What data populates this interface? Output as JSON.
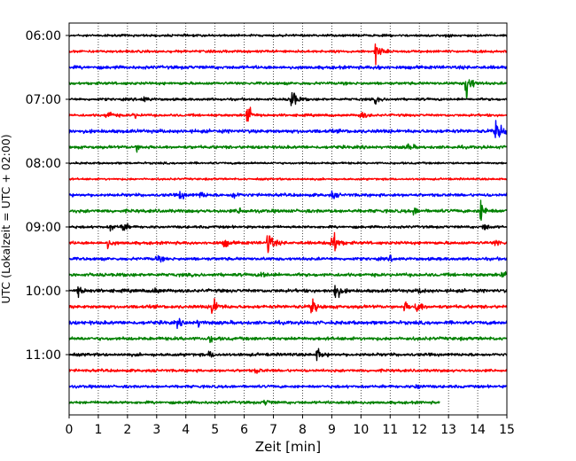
{
  "chart_data": {
    "type": "line",
    "title": "",
    "xlabel": "Zeit  [min]",
    "ylabel": "UTC (Lokalzeit = UTC + 02:00)",
    "xlim": [
      0,
      15
    ],
    "x_ticks": [
      "0",
      "1",
      "2",
      "3",
      "4",
      "5",
      "6",
      "7",
      "8",
      "9",
      "10",
      "11",
      "12",
      "13",
      "14",
      "15"
    ],
    "y_ticks": [
      "06:00",
      "07:00",
      "08:00",
      "09:00",
      "10:00",
      "11:00"
    ],
    "grid": "vertical dotted lines at each minute",
    "legend": "none",
    "colors": [
      "#000000",
      "#ff0000",
      "#0000ff",
      "#008000"
    ],
    "traces": [
      {
        "start": "06:00",
        "color": "#000000",
        "amp": 0.9,
        "end_min": 15,
        "events": [
          {
            "t": 12.9,
            "a": 1.0
          }
        ]
      },
      {
        "start": "06:15",
        "color": "#ff0000",
        "amp": 1.0,
        "end_min": 15,
        "events": [
          {
            "t": 10.5,
            "a": 10
          }
        ]
      },
      {
        "start": "06:30",
        "color": "#0000ff",
        "amp": 1.3,
        "end_min": 15,
        "events": [
          {
            "t": 10.6,
            "a": 1.5
          }
        ]
      },
      {
        "start": "06:45",
        "color": "#008000",
        "amp": 1.1,
        "end_min": 15,
        "events": [
          {
            "t": 13.6,
            "a": 18
          }
        ]
      },
      {
        "start": "07:00",
        "color": "#000000",
        "amp": 1.0,
        "end_min": 15,
        "events": [
          {
            "t": 7.6,
            "a": 13
          },
          {
            "t": 2.5,
            "a": 4
          },
          {
            "t": 10.5,
            "a": 3
          }
        ]
      },
      {
        "start": "07:15",
        "color": "#ff0000",
        "amp": 1.0,
        "end_min": 15,
        "events": [
          {
            "t": 6.1,
            "a": 11
          },
          {
            "t": 1.3,
            "a": 6
          },
          {
            "t": 10.0,
            "a": 4
          },
          {
            "t": 2.2,
            "a": 2.5
          }
        ]
      },
      {
        "start": "07:30",
        "color": "#0000ff",
        "amp": 1.4,
        "end_min": 15,
        "events": [
          {
            "t": 14.6,
            "a": 9
          },
          {
            "t": 14.8,
            "a": 4
          }
        ]
      },
      {
        "start": "07:45",
        "color": "#008000",
        "amp": 1.2,
        "end_min": 15,
        "events": [
          {
            "t": 2.3,
            "a": 3
          },
          {
            "t": 11.6,
            "a": 3
          }
        ]
      },
      {
        "start": "08:00",
        "color": "#000000",
        "amp": 0.8,
        "end_min": 15,
        "events": []
      },
      {
        "start": "08:15",
        "color": "#ff0000",
        "amp": 0.8,
        "end_min": 15,
        "events": []
      },
      {
        "start": "08:30",
        "color": "#0000ff",
        "amp": 1.2,
        "end_min": 15,
        "events": [
          {
            "t": 3.8,
            "a": 4
          },
          {
            "t": 4.5,
            "a": 3
          },
          {
            "t": 5.6,
            "a": 4
          },
          {
            "t": 9.0,
            "a": 3
          }
        ]
      },
      {
        "start": "08:45",
        "color": "#008000",
        "amp": 1.3,
        "end_min": 15,
        "events": [
          {
            "t": 14.1,
            "a": 10
          },
          {
            "t": 5.8,
            "a": 3
          },
          {
            "t": 11.8,
            "a": 3
          }
        ]
      },
      {
        "start": "09:00",
        "color": "#000000",
        "amp": 1.0,
        "end_min": 15,
        "events": [
          {
            "t": 1.8,
            "a": 6
          },
          {
            "t": 14.2,
            "a": 4
          },
          {
            "t": 1.4,
            "a": 3
          }
        ]
      },
      {
        "start": "09:15",
        "color": "#ff0000",
        "amp": 1.2,
        "end_min": 15,
        "events": [
          {
            "t": 9.0,
            "a": 18
          },
          {
            "t": 6.8,
            "a": 14
          },
          {
            "t": 1.3,
            "a": 4
          },
          {
            "t": 5.3,
            "a": 4
          },
          {
            "t": 14.6,
            "a": 3
          }
        ]
      },
      {
        "start": "09:30",
        "color": "#0000ff",
        "amp": 1.2,
        "end_min": 15,
        "events": [
          {
            "t": 3.0,
            "a": 3
          },
          {
            "t": 11.0,
            "a": 2
          }
        ]
      },
      {
        "start": "09:45",
        "color": "#008000",
        "amp": 1.3,
        "end_min": 15,
        "events": [
          {
            "t": 6.6,
            "a": 3
          },
          {
            "t": 14.8,
            "a": 3
          }
        ]
      },
      {
        "start": "10:00",
        "color": "#000000",
        "amp": 1.3,
        "end_min": 15,
        "events": [
          {
            "t": 9.1,
            "a": 10
          },
          {
            "t": 0.3,
            "a": 5
          },
          {
            "t": 2.9,
            "a": 3
          },
          {
            "t": 12.0,
            "a": 2
          }
        ]
      },
      {
        "start": "10:15",
        "color": "#ff0000",
        "amp": 1.3,
        "end_min": 15,
        "events": [
          {
            "t": 4.9,
            "a": 12
          },
          {
            "t": 8.3,
            "a": 8
          },
          {
            "t": 11.9,
            "a": 7
          },
          {
            "t": 11.5,
            "a": 4
          }
        ]
      },
      {
        "start": "10:30",
        "color": "#0000ff",
        "amp": 1.4,
        "end_min": 15,
        "events": [
          {
            "t": 3.7,
            "a": 3
          },
          {
            "t": 4.4,
            "a": 3
          }
        ]
      },
      {
        "start": "10:45",
        "color": "#008000",
        "amp": 1.3,
        "end_min": 15,
        "events": [
          {
            "t": 4.8,
            "a": 3
          }
        ]
      },
      {
        "start": "11:00",
        "color": "#000000",
        "amp": 1.2,
        "end_min": 15,
        "events": [
          {
            "t": 8.5,
            "a": 6
          },
          {
            "t": 4.8,
            "a": 3
          }
        ]
      },
      {
        "start": "11:15",
        "color": "#ff0000",
        "amp": 1.1,
        "end_min": 15,
        "events": [
          {
            "t": 6.4,
            "a": 2.5
          }
        ]
      },
      {
        "start": "11:30",
        "color": "#0000ff",
        "amp": 1.1,
        "end_min": 15,
        "events": [
          {
            "t": 11.9,
            "a": 3
          }
        ]
      },
      {
        "start": "11:45",
        "color": "#008000",
        "amp": 1.1,
        "end_min": 12.7,
        "events": [
          {
            "t": 6.7,
            "a": 3
          },
          {
            "t": 9.6,
            "a": 2
          }
        ]
      }
    ]
  }
}
